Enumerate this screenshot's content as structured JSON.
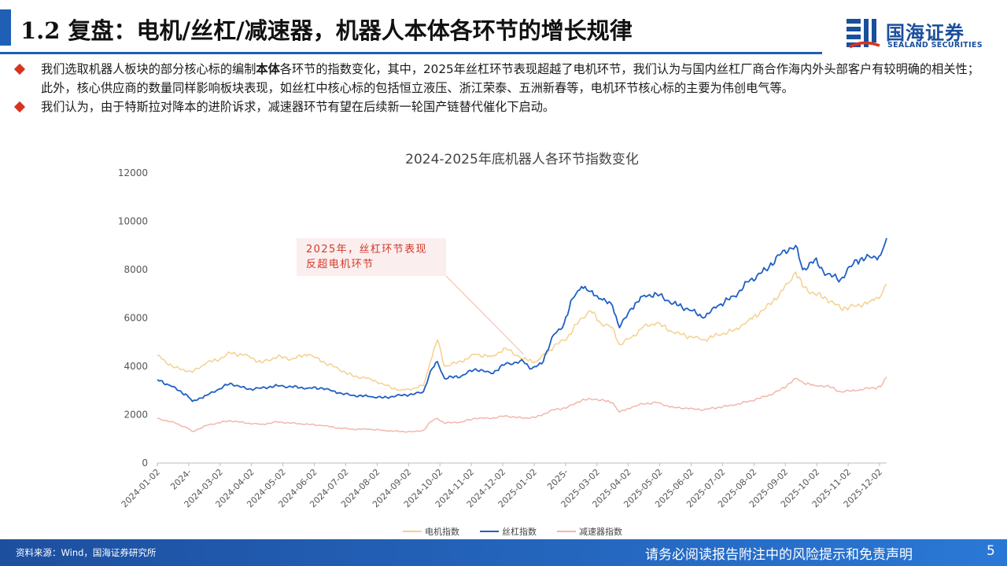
{
  "header": {
    "title": "1.2 复盘：电机/丝杠/减速器，机器人本体各环节的增长规律",
    "logo": {
      "name_cn": "国海证券",
      "name_en": "SEALAND SECURITIES",
      "colors": {
        "primary": "#1a4f9c",
        "accent": "#d9321f"
      },
      "icon": "sealand-logo-icon"
    }
  },
  "bullets": [
    {
      "segments": [
        {
          "text": "我们选取机器人板块的部分核心标的编制",
          "bold": false
        },
        {
          "text": "本体",
          "bold": true
        },
        {
          "text": "各环节的指数变化，其中，2025年丝杠环节表现超越了电机环节，我们认为与国内丝杠厂商合作海内外头部客户有较明确的相关性；此外，核心供应商的数量同样影响板块表现，如丝杠中核心标的包括恒立液压、浙江荣泰、五洲新春等，电机环节核心标的主要为伟创电气等。",
          "bold": false
        }
      ]
    },
    {
      "segments": [
        {
          "text": "我们认为，由于特斯拉对降本的进阶诉求，减速器环节有望在后续新一轮国产链替代催化下启动。",
          "bold": false
        }
      ]
    }
  ],
  "chart_data": {
    "type": "line",
    "title": "2024-2025年底机器人各环节指数变化",
    "xlabel": "",
    "ylabel": "",
    "ylim": [
      0,
      12000
    ],
    "yticks": [
      0,
      2000,
      4000,
      6000,
      8000,
      10000,
      12000
    ],
    "x_start": "2024-01-02",
    "x_end": "2025-12-31",
    "x_tick_labels": [
      "2024-01-02",
      "2024-",
      "2024-03-02",
      "2024-04-02",
      "2024-05-02",
      "2024-06-02",
      "2024-07-02",
      "2024-08-02",
      "2024-09-02",
      "2024-10-02",
      "2024-11-02",
      "2024-12-02",
      "2025-01-02",
      "2025-",
      "2025-03-02",
      "2025-04-02",
      "2025-05-02",
      "2025-06-02",
      "2025-07-02",
      "2025-08-02",
      "2025-09-02",
      "2025-10-02",
      "2025-11-02",
      "2025-12-02"
    ],
    "grid": false,
    "legend_position": "bottom",
    "series": [
      {
        "name": "电机指数",
        "color": "#f5d08f",
        "points": [
          [
            "2024-01-02",
            4450
          ],
          [
            "2024-01-10",
            4200
          ],
          [
            "2024-01-20",
            3950
          ],
          [
            "2024-02-01",
            3800
          ],
          [
            "2024-02-06",
            3750
          ],
          [
            "2024-02-20",
            4150
          ],
          [
            "2024-03-01",
            4250
          ],
          [
            "2024-03-15",
            4550
          ],
          [
            "2024-04-01",
            4450
          ],
          [
            "2024-04-15",
            4150
          ],
          [
            "2024-05-01",
            4400
          ],
          [
            "2024-05-15",
            4300
          ],
          [
            "2024-06-01",
            4500
          ],
          [
            "2024-06-15",
            4200
          ],
          [
            "2024-07-01",
            3900
          ],
          [
            "2024-07-15",
            3600
          ],
          [
            "2024-08-01",
            3500
          ],
          [
            "2024-08-15",
            3250
          ],
          [
            "2024-09-01",
            3000
          ],
          [
            "2024-09-15",
            3100
          ],
          [
            "2024-09-24",
            3200
          ],
          [
            "2024-10-01",
            4200
          ],
          [
            "2024-10-08",
            5100
          ],
          [
            "2024-10-15",
            4000
          ],
          [
            "2024-11-01",
            4200
          ],
          [
            "2024-11-15",
            4500
          ],
          [
            "2024-12-01",
            4400
          ],
          [
            "2024-12-15",
            4750
          ],
          [
            "2025-01-02",
            4300
          ],
          [
            "2025-01-15",
            4200
          ],
          [
            "2025-02-01",
            4800
          ],
          [
            "2025-02-15",
            5200
          ],
          [
            "2025-03-01",
            6000
          ],
          [
            "2025-03-10",
            6300
          ],
          [
            "2025-03-20",
            5800
          ],
          [
            "2025-04-01",
            5600
          ],
          [
            "2025-04-08",
            4900
          ],
          [
            "2025-04-20",
            5200
          ],
          [
            "2025-05-01",
            5600
          ],
          [
            "2025-05-15",
            5800
          ],
          [
            "2025-06-01",
            5400
          ],
          [
            "2025-06-20",
            5200
          ],
          [
            "2025-07-01",
            5100
          ],
          [
            "2025-07-15",
            5300
          ],
          [
            "2025-08-01",
            5500
          ],
          [
            "2025-08-15",
            5900
          ],
          [
            "2025-09-01",
            6400
          ],
          [
            "2025-09-15",
            7000
          ],
          [
            "2025-09-25",
            7500
          ],
          [
            "2025-10-01",
            7900
          ],
          [
            "2025-10-08",
            7300
          ],
          [
            "2025-10-20",
            7000
          ],
          [
            "2025-11-01",
            6800
          ],
          [
            "2025-11-15",
            6400
          ],
          [
            "2025-12-01",
            6500
          ],
          [
            "2025-12-15",
            6700
          ],
          [
            "2025-12-25",
            6900
          ],
          [
            "2025-12-31",
            7400
          ]
        ]
      },
      {
        "name": "丝杠指数",
        "color": "#1f5fc4",
        "points": [
          [
            "2024-01-02",
            3450
          ],
          [
            "2024-01-15",
            3200
          ],
          [
            "2024-02-01",
            2800
          ],
          [
            "2024-02-06",
            2550
          ],
          [
            "2024-02-20",
            2800
          ],
          [
            "2024-03-01",
            3000
          ],
          [
            "2024-03-15",
            3300
          ],
          [
            "2024-04-01",
            3050
          ],
          [
            "2024-04-15",
            3100
          ],
          [
            "2024-05-01",
            3200
          ],
          [
            "2024-05-15",
            3150
          ],
          [
            "2024-06-01",
            3100
          ],
          [
            "2024-06-15",
            3100
          ],
          [
            "2024-07-01",
            2900
          ],
          [
            "2024-07-15",
            2800
          ],
          [
            "2024-08-01",
            2750
          ],
          [
            "2024-08-15",
            2700
          ],
          [
            "2024-09-01",
            2800
          ],
          [
            "2024-09-15",
            2850
          ],
          [
            "2024-09-24",
            2950
          ],
          [
            "2024-10-01",
            3800
          ],
          [
            "2024-10-08",
            4200
          ],
          [
            "2024-10-15",
            3500
          ],
          [
            "2024-11-01",
            3600
          ],
          [
            "2024-11-15",
            3900
          ],
          [
            "2024-12-01",
            3700
          ],
          [
            "2024-12-15",
            4100
          ],
          [
            "2025-01-02",
            4200
          ],
          [
            "2025-01-10",
            3900
          ],
          [
            "2025-01-20",
            4100
          ],
          [
            "2025-02-01",
            5300
          ],
          [
            "2025-02-10",
            5600
          ],
          [
            "2025-02-20",
            6800
          ],
          [
            "2025-03-01",
            7300
          ],
          [
            "2025-03-10",
            7100
          ],
          [
            "2025-03-20",
            6800
          ],
          [
            "2025-04-01",
            6500
          ],
          [
            "2025-04-08",
            5600
          ],
          [
            "2025-04-20",
            6400
          ],
          [
            "2025-05-01",
            6900
          ],
          [
            "2025-05-15",
            7000
          ],
          [
            "2025-06-01",
            6600
          ],
          [
            "2025-06-20",
            6300
          ],
          [
            "2025-07-01",
            6000
          ],
          [
            "2025-07-15",
            6500
          ],
          [
            "2025-08-01",
            6900
          ],
          [
            "2025-08-15",
            7500
          ],
          [
            "2025-09-01",
            8000
          ],
          [
            "2025-09-15",
            8600
          ],
          [
            "2025-09-25",
            8900
          ],
          [
            "2025-10-01",
            9000
          ],
          [
            "2025-10-08",
            8000
          ],
          [
            "2025-10-20",
            8400
          ],
          [
            "2025-11-01",
            7800
          ],
          [
            "2025-11-15",
            7600
          ],
          [
            "2025-12-01",
            8400
          ],
          [
            "2025-12-15",
            8500
          ],
          [
            "2025-12-25",
            8600
          ],
          [
            "2025-12-31",
            9300
          ]
        ]
      },
      {
        "name": "减速器指数",
        "color": "#f2b7aa",
        "points": [
          [
            "2024-01-02",
            1850
          ],
          [
            "2024-01-20",
            1650
          ],
          [
            "2024-02-01",
            1450
          ],
          [
            "2024-02-06",
            1300
          ],
          [
            "2024-02-20",
            1550
          ],
          [
            "2024-03-01",
            1650
          ],
          [
            "2024-03-15",
            1750
          ],
          [
            "2024-04-01",
            1650
          ],
          [
            "2024-04-15",
            1600
          ],
          [
            "2024-05-01",
            1700
          ],
          [
            "2024-05-15",
            1650
          ],
          [
            "2024-06-01",
            1600
          ],
          [
            "2024-06-15",
            1550
          ],
          [
            "2024-07-01",
            1450
          ],
          [
            "2024-07-15",
            1400
          ],
          [
            "2024-08-01",
            1400
          ],
          [
            "2024-08-15",
            1350
          ],
          [
            "2024-09-01",
            1300
          ],
          [
            "2024-09-15",
            1300
          ],
          [
            "2024-09-24",
            1350
          ],
          [
            "2024-10-01",
            1700
          ],
          [
            "2024-10-08",
            1850
          ],
          [
            "2024-10-15",
            1650
          ],
          [
            "2024-11-01",
            1700
          ],
          [
            "2024-11-15",
            1850
          ],
          [
            "2024-12-01",
            1850
          ],
          [
            "2024-12-15",
            1950
          ],
          [
            "2025-01-02",
            1850
          ],
          [
            "2025-01-15",
            1900
          ],
          [
            "2025-02-01",
            2200
          ],
          [
            "2025-02-15",
            2300
          ],
          [
            "2025-03-01",
            2600
          ],
          [
            "2025-03-15",
            2650
          ],
          [
            "2025-04-01",
            2500
          ],
          [
            "2025-04-08",
            2100
          ],
          [
            "2025-04-20",
            2300
          ],
          [
            "2025-05-01",
            2450
          ],
          [
            "2025-05-15",
            2500
          ],
          [
            "2025-06-01",
            2300
          ],
          [
            "2025-06-20",
            2250
          ],
          [
            "2025-07-01",
            2200
          ],
          [
            "2025-07-15",
            2300
          ],
          [
            "2025-08-01",
            2400
          ],
          [
            "2025-08-15",
            2550
          ],
          [
            "2025-09-01",
            2750
          ],
          [
            "2025-09-15",
            3000
          ],
          [
            "2025-09-25",
            3300
          ],
          [
            "2025-10-01",
            3500
          ],
          [
            "2025-10-08",
            3350
          ],
          [
            "2025-10-20",
            3200
          ],
          [
            "2025-11-01",
            3200
          ],
          [
            "2025-11-15",
            2950
          ],
          [
            "2025-12-01",
            3000
          ],
          [
            "2025-12-15",
            3100
          ],
          [
            "2025-12-25",
            3150
          ],
          [
            "2025-12-31",
            3550
          ]
        ]
      }
    ],
    "annotations": [
      {
        "text_lines": [
          "2025年，丝杠环节表现",
          "反超电机环节"
        ],
        "points_to": [
          "2025-01-02",
          4300
        ]
      }
    ]
  },
  "footer": {
    "source": "资料来源：Wind，国海证券研究所",
    "disclaimer": "请务必阅读报告附注中的风险提示和免责声明",
    "page_number": "5"
  }
}
